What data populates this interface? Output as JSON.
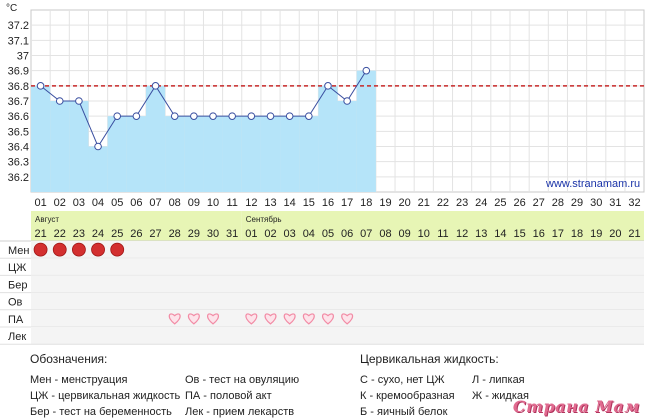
{
  "chart_data": {
    "type": "bar",
    "y_unit": "°C",
    "yticks": [
      "37.2",
      "37.1",
      "37",
      "36.9",
      "36.8",
      "36.7",
      "36.6",
      "36.5",
      "36.4",
      "36.3",
      "36.2"
    ],
    "ylim": [
      36.1,
      37.3
    ],
    "reference_line": 36.8,
    "cycle_days": [
      "01",
      "02",
      "03",
      "04",
      "05",
      "06",
      "07",
      "08",
      "09",
      "10",
      "11",
      "12",
      "13",
      "14",
      "15",
      "16",
      "17",
      "18",
      "19",
      "20",
      "21",
      "22",
      "23",
      "24",
      "25",
      "26",
      "27",
      "28",
      "29",
      "30",
      "31",
      "32"
    ],
    "temperatures": [
      36.8,
      36.7,
      36.7,
      36.4,
      36.6,
      36.6,
      36.8,
      36.6,
      36.6,
      36.6,
      36.6,
      36.6,
      36.6,
      36.6,
      36.6,
      36.8,
      36.7,
      36.9
    ],
    "months": [
      {
        "label": "Август",
        "dates": [
          "21",
          "22",
          "23",
          "24",
          "25",
          "26",
          "27",
          "28",
          "29",
          "30",
          "31"
        ]
      },
      {
        "label": "Сентябрь",
        "dates": [
          "01",
          "02",
          "03",
          "04",
          "05",
          "06",
          "07",
          "08",
          "09",
          "10",
          "11",
          "12",
          "13",
          "14",
          "15",
          "16",
          "17",
          "18",
          "19",
          "20",
          "21"
        ]
      }
    ],
    "rows": [
      {
        "label": "Мен",
        "marker": "dot",
        "days": [
          1,
          2,
          3,
          4,
          5
        ]
      },
      {
        "label": "ЦЖ",
        "marker": "",
        "days": []
      },
      {
        "label": "Бер",
        "marker": "",
        "days": []
      },
      {
        "label": "Ов",
        "marker": "",
        "days": []
      },
      {
        "label": "ПА",
        "marker": "heart",
        "days": [
          8,
          9,
          10,
          12,
          13,
          14,
          15,
          16,
          17
        ]
      },
      {
        "label": "Лек",
        "marker": "",
        "days": []
      }
    ],
    "colors": {
      "bar": "#b5e4f9",
      "line": "#3a4fa0",
      "reference": "#c62828",
      "month_band": "#e7f5b5",
      "dot": "#d32f2f",
      "heart": "#f28ba5"
    }
  },
  "site": "www.stranamam.ru",
  "legend": {
    "title": "Обозначения:",
    "items": [
      "Мен - менструация",
      "Ов - тест на овуляцию",
      "ЦЖ - цервикальная жидкость",
      "ПА - половой акт",
      "Бер - тест на беременность",
      "Лек - прием лекарств"
    ]
  },
  "cervical": {
    "title": "Цервикальная жидкость:",
    "items": [
      "С - сухо, нет ЦЖ",
      "Л - липкая",
      "К - кремообразная",
      "Ж - жидкая",
      "Б - яичный белок"
    ]
  },
  "watermark": "Страна Мам"
}
